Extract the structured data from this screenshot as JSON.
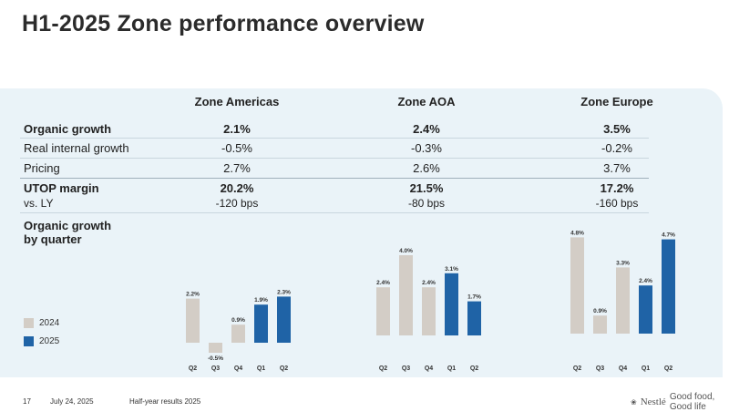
{
  "title": "H1-2025 Zone performance overview",
  "zones": [
    "Zone Americas",
    "Zone AOA",
    "Zone Europe"
  ],
  "table": {
    "organic_growth": {
      "label": "Organic growth",
      "values": [
        "2.1%",
        "2.4%",
        "3.5%"
      ]
    },
    "rig": {
      "label": "Real internal growth",
      "values": [
        "-0.5%",
        "-0.3%",
        "-0.2%"
      ]
    },
    "pricing": {
      "label": "Pricing",
      "values": [
        "2.7%",
        "2.6%",
        "3.7%"
      ]
    },
    "utop": {
      "label": "UTOP margin",
      "values": [
        "20.2%",
        "21.5%",
        "17.2%"
      ]
    },
    "vs_ly": {
      "label": "vs. LY",
      "values": [
        "-120 bps",
        "-80 bps",
        "-160 bps"
      ]
    }
  },
  "og_by_quarter_title": [
    "Organic growth",
    "by quarter"
  ],
  "legend": [
    {
      "label": "2024",
      "color": "#d3cdc6"
    },
    {
      "label": "2025",
      "color": "#1f63a6"
    }
  ],
  "chart_data": [
    {
      "type": "bar",
      "title": "Zone Americas",
      "categories": [
        "Q2",
        "Q3",
        "Q4",
        "Q1",
        "Q2"
      ],
      "years": [
        "2024",
        "2024",
        "2024",
        "2025",
        "2025"
      ],
      "values": [
        2.2,
        -0.5,
        0.9,
        1.9,
        2.3
      ],
      "labels": [
        "2.2%",
        "-0.5%",
        "0.9%",
        "1.9%",
        "2.3%"
      ],
      "ylabel": "Organic growth by quarter (%)"
    },
    {
      "type": "bar",
      "title": "Zone AOA",
      "categories": [
        "Q2",
        "Q3",
        "Q4",
        "Q1",
        "Q2"
      ],
      "years": [
        "2024",
        "2024",
        "2024",
        "2025",
        "2025"
      ],
      "values": [
        2.4,
        4.0,
        2.4,
        3.1,
        1.7
      ],
      "labels": [
        "2.4%",
        "4.0%",
        "2.4%",
        "3.1%",
        "1.7%"
      ],
      "ylabel": "Organic growth by quarter (%)"
    },
    {
      "type": "bar",
      "title": "Zone Europe",
      "categories": [
        "Q2",
        "Q3",
        "Q4",
        "Q1",
        "Q2"
      ],
      "years": [
        "2024",
        "2024",
        "2024",
        "2025",
        "2025"
      ],
      "values": [
        4.8,
        0.9,
        3.3,
        2.4,
        4.7
      ],
      "labels": [
        "4.8%",
        "0.9%",
        "3.3%",
        "2.4%",
        "4.7%"
      ],
      "ylabel": "Organic growth by quarter (%)"
    }
  ],
  "colors": {
    "bar_2024": "#d3cdc6",
    "bar_2025": "#1f63a6",
    "panel": "#eaf3f8"
  },
  "footer": {
    "page": "17",
    "date": "July 24, 2025",
    "doc": "Half-year results 2025",
    "brand": "Nestlé",
    "tagline": "Good food, Good life"
  }
}
